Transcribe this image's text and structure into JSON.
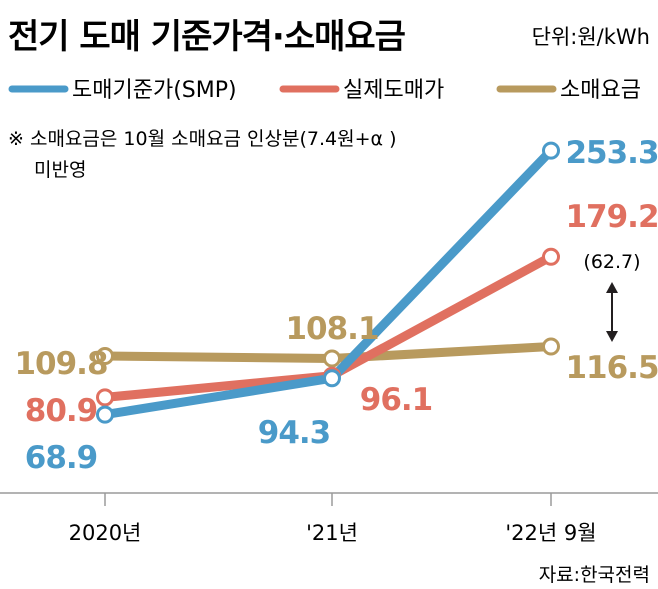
{
  "chart_data": {
    "type": "line",
    "title": "전기 도매 기준가격·소매요금",
    "unit_label": "단위:원/kWh",
    "categories": [
      "2020년",
      "'21년",
      "'22년 9월"
    ],
    "series": [
      {
        "name": "도매기준가(SMP)",
        "color": "#4a9ac9",
        "values": [
          68.9,
          94.3,
          253.3
        ],
        "labels": [
          "68.9",
          "94.3",
          "253.3"
        ]
      },
      {
        "name": "실제도매가",
        "color": "#e07060",
        "values": [
          80.9,
          96.1,
          179.2
        ],
        "labels": [
          "80.9",
          "96.1",
          "179.2"
        ]
      },
      {
        "name": "소매요금",
        "color": "#b89a5e",
        "values": [
          109.8,
          108.1,
          116.5
        ],
        "labels": [
          "109.8",
          "108.1",
          "116.5"
        ]
      }
    ],
    "gap_annotation": "(62.7)",
    "note_line1": "※ 소매요금은 10월 소매요금 인상분(7.4원+α )",
    "note_line2": "미반영",
    "source": "자료:한국전력"
  }
}
